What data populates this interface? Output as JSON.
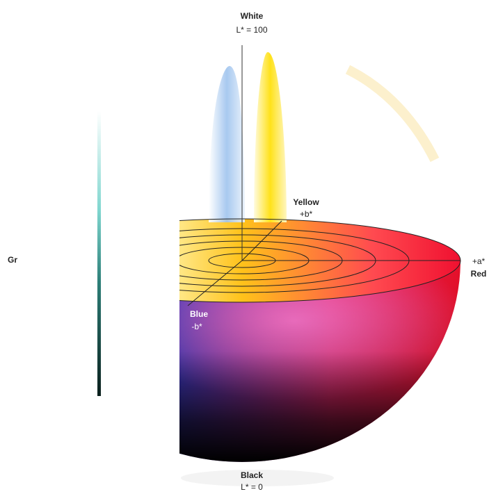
{
  "labels": {
    "white": {
      "name": "White",
      "value": "L* = 100"
    },
    "yellow": {
      "name": "Yellow",
      "value": "+b*"
    },
    "green": {
      "name": "Gr"
    },
    "blue": {
      "name": "Blue",
      "value": "-b*"
    },
    "red": {
      "name": "Red",
      "value": "+a*"
    },
    "black": {
      "name": "Black",
      "value": "L* = 0"
    }
  }
}
